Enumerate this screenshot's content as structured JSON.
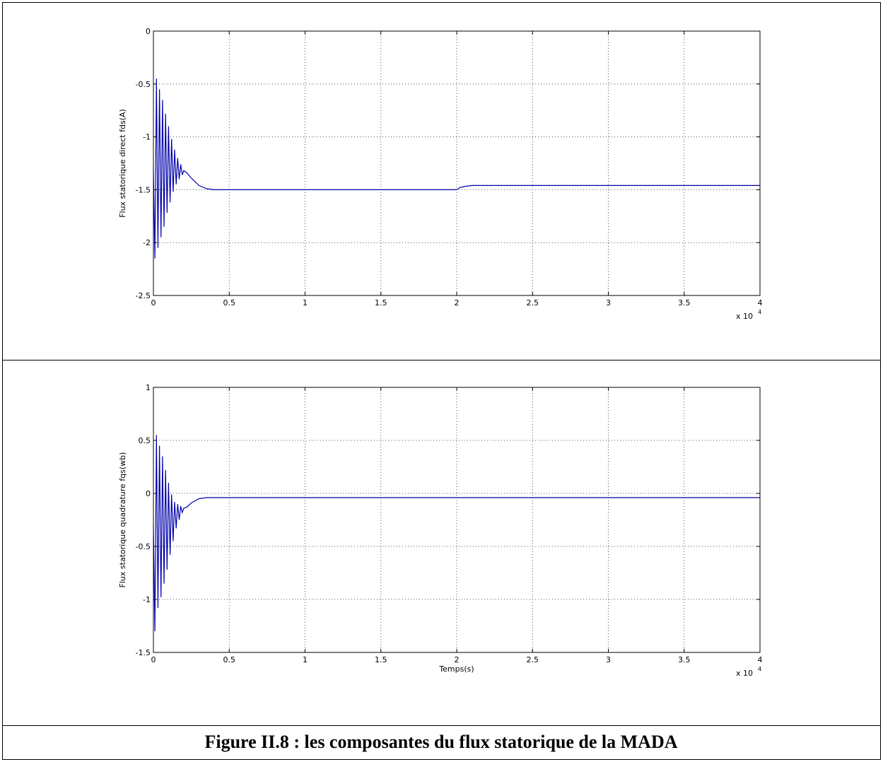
{
  "caption": "Figure II.8 : les composantes du flux statorique de la MADA",
  "chart_data": [
    {
      "type": "line",
      "title": "",
      "xlabel": "",
      "ylabel": "Flux statorique direct fds(A)",
      "x_multiplier_label": "x 10",
      "x_multiplier_exp": "4",
      "xlim": [
        0,
        4
      ],
      "ylim": [
        -2.5,
        0
      ],
      "grid": true,
      "line_color": "#0000aa",
      "xticks": [
        0,
        0.5,
        1,
        1.5,
        2,
        2.5,
        3,
        3.5,
        4
      ],
      "xtick_labels": [
        "0",
        "0.5",
        "1",
        "1.5",
        "2",
        "2.5",
        "3",
        "3.5",
        "4"
      ],
      "yticks": [
        -2.5,
        -2,
        -1.5,
        -1,
        -0.5,
        0
      ],
      "ytick_labels": [
        "-2.5",
        "-2",
        "-1.5",
        "-1",
        "-0.5",
        "0"
      ],
      "series": [
        {
          "x": [
            0,
            0.01,
            0.02,
            0.03,
            0.04,
            0.05,
            0.06,
            0.07,
            0.08,
            0.09,
            0.1,
            0.11,
            0.12,
            0.13,
            0.14,
            0.15,
            0.16,
            0.17,
            0.18,
            0.19,
            0.2,
            0.22,
            0.25,
            0.3,
            0.35,
            0.4,
            0.5,
            1.0,
            1.5,
            1.95,
            2.0,
            2.02,
            2.05,
            2.1,
            2.5,
            3.0,
            3.5,
            4.0
          ],
          "values": [
            -1.3,
            -2.15,
            -0.45,
            -2.05,
            -0.55,
            -1.95,
            -0.65,
            -1.85,
            -0.78,
            -1.72,
            -0.9,
            -1.62,
            -1.02,
            -1.52,
            -1.12,
            -1.45,
            -1.2,
            -1.4,
            -1.26,
            -1.36,
            -1.32,
            -1.34,
            -1.39,
            -1.46,
            -1.49,
            -1.5,
            -1.5,
            -1.5,
            -1.5,
            -1.5,
            -1.5,
            -1.48,
            -1.47,
            -1.46,
            -1.46,
            -1.46,
            -1.46,
            -1.46
          ]
        }
      ]
    },
    {
      "type": "line",
      "title": "",
      "xlabel": "Temps(s)",
      "ylabel": "Flux  statorique quadrature fqs(wb)",
      "x_multiplier_label": "x 10",
      "x_multiplier_exp": "4",
      "xlim": [
        0,
        4
      ],
      "ylim": [
        -1.5,
        1
      ],
      "grid": true,
      "line_color": "#0000aa",
      "xticks": [
        0,
        0.5,
        1,
        1.5,
        2,
        2.5,
        3,
        3.5,
        4
      ],
      "xtick_labels": [
        "0",
        "0.5",
        "1",
        "1.5",
        "2",
        "2.5",
        "3",
        "3.5",
        "4"
      ],
      "yticks": [
        -1.5,
        -1,
        -0.5,
        0,
        0.5,
        1
      ],
      "ytick_labels": [
        "-1.5",
        "-1",
        "-0.5",
        "0",
        "0.5",
        "1"
      ],
      "series": [
        {
          "x": [
            0,
            0.01,
            0.02,
            0.03,
            0.04,
            0.05,
            0.06,
            0.07,
            0.08,
            0.09,
            0.1,
            0.11,
            0.12,
            0.13,
            0.14,
            0.15,
            0.16,
            0.17,
            0.18,
            0.19,
            0.2,
            0.22,
            0.25,
            0.3,
            0.35,
            0.4,
            1.0,
            1.5,
            2.0,
            2.02,
            2.5,
            3.0,
            3.5,
            4.0
          ],
          "values": [
            -0.3,
            -1.3,
            0.55,
            -1.08,
            0.45,
            -0.98,
            0.35,
            -0.85,
            0.22,
            -0.72,
            0.1,
            -0.58,
            -0.01,
            -0.45,
            -0.08,
            -0.33,
            -0.1,
            -0.25,
            -0.12,
            -0.18,
            -0.14,
            -0.13,
            -0.09,
            -0.05,
            -0.04,
            -0.04,
            -0.04,
            -0.04,
            -0.04,
            -0.04,
            -0.04,
            -0.04,
            -0.04,
            -0.04
          ]
        }
      ]
    }
  ]
}
